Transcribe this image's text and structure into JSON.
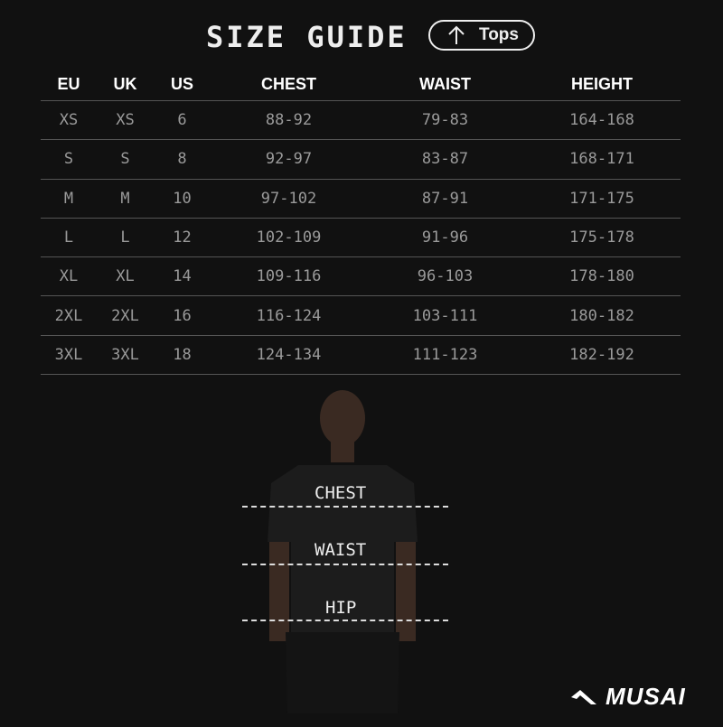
{
  "header": {
    "title": "SIZE GUIDE",
    "category_button": "Tops",
    "category_icon": "arrow-up-icon"
  },
  "table": {
    "columns": [
      "EU",
      "UK",
      "US",
      "CHEST",
      "WAIST",
      "HEIGHT"
    ],
    "rows": [
      [
        "XS",
        "XS",
        "6",
        "88-92",
        "79-83",
        "164-168"
      ],
      [
        "S",
        "S",
        "8",
        "92-97",
        "83-87",
        "168-171"
      ],
      [
        "M",
        "M",
        "10",
        "97-102",
        "87-91",
        "171-175"
      ],
      [
        "L",
        "L",
        "12",
        "102-109",
        "91-96",
        "175-178"
      ],
      [
        "XL",
        "XL",
        "14",
        "109-116",
        "96-103",
        "178-180"
      ],
      [
        "2XL",
        "2XL",
        "16",
        "116-124",
        "103-111",
        "180-182"
      ],
      [
        "3XL",
        "3XL",
        "18",
        "124-134",
        "111-123",
        "182-192"
      ]
    ]
  },
  "measure_labels": {
    "chest": "CHEST",
    "waist": "WAIST",
    "hip": "HIP"
  },
  "brand": {
    "name": "MUSAI"
  }
}
